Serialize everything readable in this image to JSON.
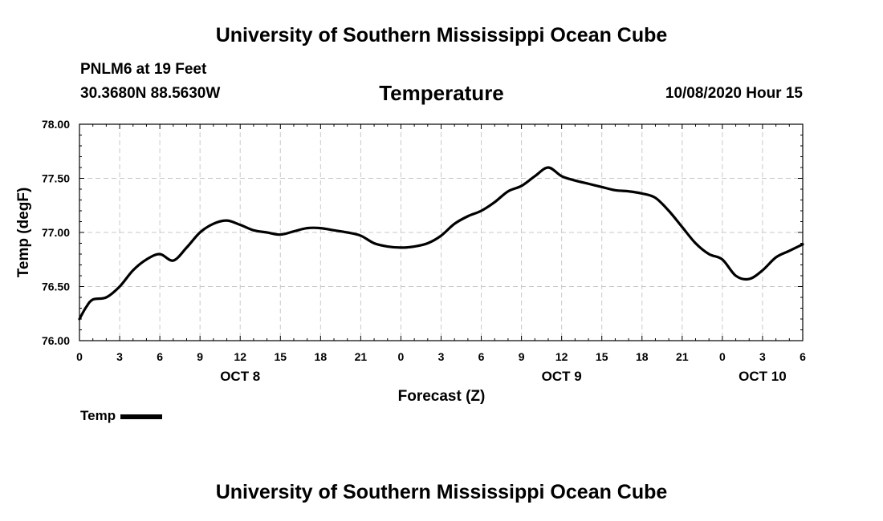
{
  "header": {
    "title": "University of Southern Mississippi Ocean Cube",
    "station": "PNLM6 at 19 Feet",
    "coords": "30.3680N 88.5630W",
    "date": "10/08/2020 Hour 15"
  },
  "footer": {
    "title": "University of Southern Mississippi Ocean Cube"
  },
  "legend": {
    "label": "Temp"
  },
  "colors": {
    "line": "#000000",
    "grid": "#c8c8c8",
    "axis": "#000000"
  },
  "chart_data": {
    "type": "line",
    "title": "Temperature",
    "xlabel": "Forecast (Z)",
    "ylabel": "Temp (degF)",
    "xlim": [
      0,
      54
    ],
    "ylim": [
      76.0,
      78.0
    ],
    "x_ticks": [
      0,
      3,
      6,
      9,
      12,
      15,
      18,
      21,
      24,
      27,
      30,
      33,
      36,
      39,
      42,
      45,
      48,
      51,
      54
    ],
    "x_tick_labels": [
      "0",
      "3",
      "6",
      "9",
      "12",
      "15",
      "18",
      "21",
      "0",
      "3",
      "6",
      "9",
      "12",
      "15",
      "18",
      "21",
      "0",
      "3",
      "6"
    ],
    "y_ticks": [
      76.0,
      76.5,
      77.0,
      77.5,
      78.0
    ],
    "y_tick_labels": [
      "76.00",
      "76.50",
      "77.00",
      "77.50",
      "78.00"
    ],
    "day_labels": [
      {
        "x": 12,
        "label": "OCT 8"
      },
      {
        "x": 36,
        "label": "OCT 9"
      },
      {
        "x": 51,
        "label": "OCT 10"
      }
    ],
    "grid": true,
    "series": [
      {
        "name": "Temp",
        "x": [
          0,
          0.5,
          1,
          2,
          3,
          4,
          5,
          6,
          7,
          8,
          9,
          10,
          11,
          12,
          13,
          14,
          15,
          16,
          17,
          18,
          19,
          20,
          21,
          22,
          23,
          24,
          25,
          26,
          27,
          28,
          29,
          30,
          31,
          32,
          33,
          34,
          35,
          36,
          37,
          38,
          39,
          40,
          41,
          42,
          43,
          44,
          45,
          46,
          47,
          48,
          49,
          50,
          51,
          52,
          53,
          54
        ],
        "values": [
          76.2,
          76.31,
          76.38,
          76.4,
          76.5,
          76.65,
          76.75,
          76.8,
          76.74,
          76.86,
          77.0,
          77.08,
          77.11,
          77.07,
          77.02,
          77.0,
          76.98,
          77.01,
          77.04,
          77.04,
          77.02,
          77.0,
          76.97,
          76.9,
          76.87,
          76.86,
          76.87,
          76.9,
          76.97,
          77.08,
          77.15,
          77.2,
          77.28,
          77.38,
          77.43,
          77.52,
          77.6,
          77.52,
          77.48,
          77.45,
          77.42,
          77.39,
          77.38,
          77.36,
          77.32,
          77.2,
          77.05,
          76.9,
          76.8,
          76.75,
          76.6,
          76.57,
          76.65,
          76.77,
          76.83,
          76.89
        ]
      }
    ]
  }
}
